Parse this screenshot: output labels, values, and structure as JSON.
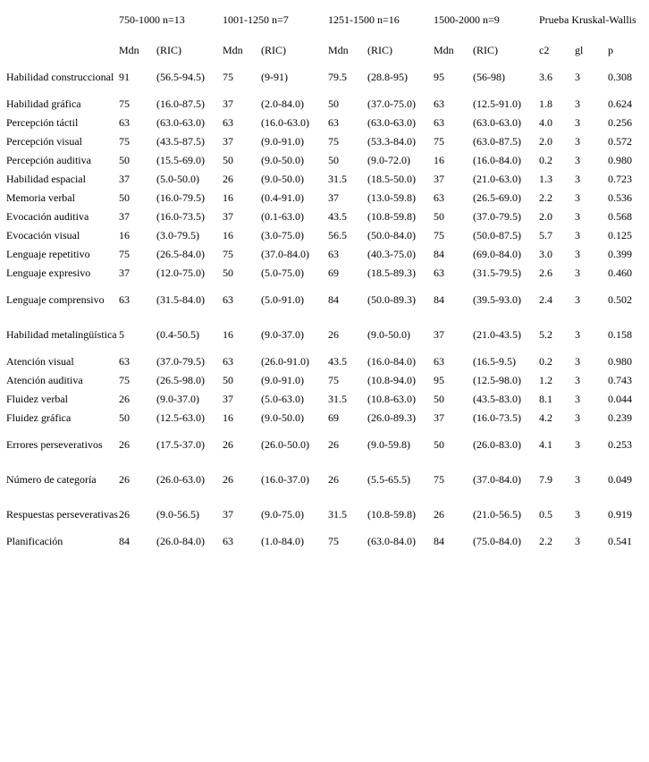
{
  "groups": [
    "750-1000 n=13",
    "1001-1250 n=7",
    "1251-1500 n=16",
    "1500-2000 n=9"
  ],
  "test_title": "Prueba Kruskal-Wallis",
  "subheaders": [
    "Mdn",
    "(RIC)",
    "Mdn",
    "(RIC)",
    "Mdn",
    "(RIC)",
    "Mdn",
    "(RIC)",
    "c2",
    "gl",
    "p"
  ],
  "rows": [
    {
      "label": "Habilidad construccional",
      "cells": [
        "91",
        "(56.5-94.5)",
        "75",
        "(9-91)",
        "79.5",
        "(28.8-95)",
        "95",
        "(56-98)",
        "3.6",
        "3",
        "0.308"
      ],
      "tall": true
    },
    {
      "label": "Habilidad gráfica",
      "cells": [
        "75",
        "(16.0-87.5)",
        "37",
        "(2.0-84.0)",
        "50",
        "(37.0-75.0)",
        "63",
        "(12.5-91.0)",
        "1.8",
        "3",
        "0.624"
      ]
    },
    {
      "label": "Percepción táctil",
      "cells": [
        "63",
        "(63.0-63.0)",
        "63",
        "(16.0-63.0)",
        "63",
        "(63.0-63.0)",
        "63",
        "(63.0-63.0)",
        "4.0",
        "3",
        "0.256"
      ]
    },
    {
      "label": "Percepción visual",
      "cells": [
        "75",
        "(43.5-87.5)",
        "37",
        "(9.0-91.0)",
        "75",
        "(53.3-84.0)",
        "75",
        "(63.0-87.5)",
        "2.0",
        "3",
        "0.572"
      ]
    },
    {
      "label": "Percepción auditiva",
      "cells": [
        "50",
        "(15.5-69.0)",
        "50",
        "(9.0-50.0)",
        "50",
        "(9.0-72.0)",
        "16",
        "(16.0-84.0)",
        "0.2",
        "3",
        "0.980"
      ]
    },
    {
      "label": "Habilidad espacial",
      "cells": [
        "37",
        "(5.0-50.0)",
        "26",
        "(9.0-50.0)",
        "31.5",
        "(18.5-50.0)",
        "37",
        "(21.0-63.0)",
        "1.3",
        "3",
        "0.723"
      ]
    },
    {
      "label": "Memoria verbal",
      "cells": [
        "50",
        "(16.0-79.5)",
        "16",
        "(0.4-91.0)",
        "37",
        "(13.0-59.8)",
        "63",
        "(26.5-69.0)",
        "2.2",
        "3",
        "0.536"
      ]
    },
    {
      "label": "Evocación auditiva",
      "cells": [
        "37",
        "(16.0-73.5)",
        "37",
        "(0.1-63.0)",
        "43.5",
        "(10.8-59.8)",
        "50",
        "(37.0-79.5)",
        "2.0",
        "3",
        "0.568"
      ]
    },
    {
      "label": "Evocación visual",
      "cells": [
        "16",
        "(3.0-79.5)",
        "16",
        "(3.0-75.0)",
        "56.5",
        "(50.0-84.0)",
        "75",
        "(50.0-87.5)",
        "5.7",
        "3",
        "0.125"
      ]
    },
    {
      "label": "Lenguaje repetitivo",
      "cells": [
        "75",
        "(26.5-84.0)",
        "75",
        "(37.0-84.0)",
        "63",
        "(40.3-75.0)",
        "84",
        "(69.0-84.0)",
        "3.0",
        "3",
        "0.399"
      ]
    },
    {
      "label": "Lenguaje expresivo",
      "cells": [
        "37",
        "(12.0-75.0)",
        "50",
        "(5.0-75.0)",
        "69",
        "(18.5-89.3)",
        "63",
        "(31.5-79.5)",
        "2.6",
        "3",
        "0.460"
      ]
    },
    {
      "label": "Lenguaje comprensivo",
      "cells": [
        "63",
        "(31.5-84.0)",
        "63",
        "(5.0-91.0)",
        "84",
        "(50.0-89.3)",
        "84",
        "(39.5-93.0)",
        "2.4",
        "3",
        "0.502"
      ],
      "tall": true
    },
    {
      "label": "Habilidad metalingüística",
      "cells": [
        "5",
        "(0.4-50.5)",
        "16",
        "(9.0-37.0)",
        "26",
        "(9.0-50.0)",
        "37",
        "(21.0-43.5)",
        "5.2",
        "3",
        "0.158"
      ],
      "tall": true
    },
    {
      "label": "Atención visual",
      "cells": [
        "63",
        "(37.0-79.5)",
        "63",
        "(26.0-91.0)",
        "43.5",
        "(16.0-84.0)",
        "63",
        "(16.5-9.5)",
        "0.2",
        "3",
        "0.980"
      ]
    },
    {
      "label": "Atención auditiva",
      "cells": [
        "75",
        "(26.5-98.0)",
        "50",
        "(9.0-91.0)",
        "75",
        "(10.8-94.0)",
        "95",
        "(12.5-98.0)",
        "1.2",
        "3",
        "0.743"
      ]
    },
    {
      "label": "Fluidez verbal",
      "cells": [
        "26",
        "(9.0-37.0)",
        "37",
        "(5.0-63.0)",
        "31.5",
        "(10.8-63.0)",
        "50",
        "(43.5-83.0)",
        "8.1",
        "3",
        "0.044"
      ]
    },
    {
      "label": "Fluidez gráfica",
      "cells": [
        "50",
        "(12.5-63.0)",
        "16",
        "(9.0-50.0)",
        "69",
        "(26.0-89.3)",
        "37",
        "(16.0-73.5)",
        "4.2",
        "3",
        "0.239"
      ]
    },
    {
      "label": "Errores perseverativos",
      "cells": [
        "26",
        "(17.5-37.0)",
        "26",
        "(26.0-50.0)",
        "26",
        "(9.0-59.8)",
        "50",
        "(26.0-83.0)",
        "4.1",
        "3",
        "0.253"
      ],
      "tall": true
    },
    {
      "label": "Número de categoría",
      "cells": [
        "26",
        "(26.0-63.0)",
        "26",
        "(16.0-37.0)",
        "26",
        "(5.5-65.5)",
        "75",
        "(37.0-84.0)",
        "7.9",
        "3",
        "0.049"
      ],
      "tall": true
    },
    {
      "label": "Respuestas perseverativas",
      "cells": [
        "26",
        "(9.0-56.5)",
        "37",
        "(9.0-75.0)",
        "31.5",
        "(10.8-59.8)",
        "26",
        "(21.0-56.5)",
        "0.5",
        "3",
        "0.919"
      ],
      "tall": true
    },
    {
      "label": "Planificación",
      "cells": [
        "84",
        "(26.0-84.0)",
        "63",
        "(1.0-84.0)",
        "75",
        "(63.0-84.0)",
        "84",
        "(75.0-84.0)",
        "2.2",
        "3",
        "0.541"
      ]
    }
  ]
}
